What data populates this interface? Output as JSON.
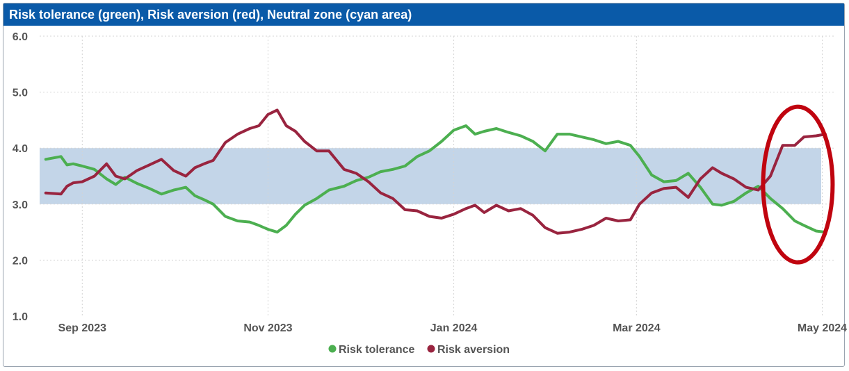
{
  "chart_data": {
    "type": "line",
    "title": "Risk tolerance (green), Risk aversion (red), Neutral zone (cyan area)",
    "ylim": [
      1.0,
      6.0
    ],
    "yticks": [
      "1.0",
      "2.0",
      "3.0",
      "4.0",
      "5.0",
      "6.0"
    ],
    "x_range": [
      "2023-08-18",
      "2024-05-05"
    ],
    "xticks": [
      {
        "label": "Sep 2023",
        "date": "2023-09-01"
      },
      {
        "label": "Nov 2023",
        "date": "2023-11-01"
      },
      {
        "label": "Jan 2024",
        "date": "2024-01-01"
      },
      {
        "label": "Mar 2024",
        "date": "2024-03-01"
      },
      {
        "label": "May 2024",
        "date": "2024-05-01"
      }
    ],
    "grid": true,
    "legend_position": "bottom-center",
    "neutral_zone": {
      "y_low": 3.0,
      "y_high": 4.0,
      "color": "#c3d5e8"
    },
    "highlight_ellipse": {
      "x_center": "2024-04-23",
      "y_center": 3.35,
      "color": "#c0040f"
    },
    "series": [
      {
        "name": "Risk tolerance",
        "color": "#4caf50",
        "x": [
          "2023-08-20",
          "2023-08-25",
          "2023-08-27",
          "2023-08-29",
          "2023-09-01",
          "2023-09-05",
          "2023-09-09",
          "2023-09-12",
          "2023-09-15",
          "2023-09-19",
          "2023-09-23",
          "2023-09-27",
          "2023-10-01",
          "2023-10-05",
          "2023-10-08",
          "2023-10-11",
          "2023-10-14",
          "2023-10-18",
          "2023-10-22",
          "2023-10-26",
          "2023-10-29",
          "2023-11-01",
          "2023-11-04",
          "2023-11-07",
          "2023-11-10",
          "2023-11-13",
          "2023-11-17",
          "2023-11-21",
          "2023-11-26",
          "2023-11-30",
          "2023-12-04",
          "2023-12-08",
          "2023-12-12",
          "2023-12-16",
          "2023-12-20",
          "2023-12-24",
          "2023-12-28",
          "2024-01-01",
          "2024-01-05",
          "2024-01-08",
          "2024-01-11",
          "2024-01-15",
          "2024-01-19",
          "2024-01-23",
          "2024-01-27",
          "2024-01-31",
          "2024-02-04",
          "2024-02-08",
          "2024-02-12",
          "2024-02-16",
          "2024-02-20",
          "2024-02-24",
          "2024-02-28",
          "2024-03-02",
          "2024-03-06",
          "2024-03-10",
          "2024-03-14",
          "2024-03-18",
          "2024-03-22",
          "2024-03-26",
          "2024-03-29",
          "2024-04-02",
          "2024-04-06",
          "2024-04-10",
          "2024-04-14",
          "2024-04-18",
          "2024-04-22",
          "2024-04-25",
          "2024-04-29",
          "2024-05-02"
        ],
        "values": [
          3.8,
          3.85,
          3.7,
          3.72,
          3.68,
          3.62,
          3.45,
          3.35,
          3.48,
          3.37,
          3.28,
          3.18,
          3.25,
          3.3,
          3.15,
          3.08,
          3.0,
          2.78,
          2.7,
          2.68,
          2.62,
          2.55,
          2.5,
          2.62,
          2.82,
          2.98,
          3.1,
          3.25,
          3.32,
          3.42,
          3.48,
          3.58,
          3.62,
          3.68,
          3.85,
          3.95,
          4.12,
          4.32,
          4.4,
          4.25,
          4.3,
          4.35,
          4.28,
          4.22,
          4.12,
          3.95,
          4.25,
          4.25,
          4.2,
          4.15,
          4.08,
          4.12,
          4.05,
          3.85,
          3.52,
          3.4,
          3.42,
          3.55,
          3.3,
          3.0,
          2.98,
          3.05,
          3.2,
          3.32,
          3.1,
          2.92,
          2.7,
          2.62,
          2.52,
          2.5
        ]
      },
      {
        "name": "Risk aversion",
        "color": "#99243f",
        "x": [
          "2023-08-20",
          "2023-08-25",
          "2023-08-27",
          "2023-08-29",
          "2023-09-01",
          "2023-09-05",
          "2023-09-09",
          "2023-09-12",
          "2023-09-15",
          "2023-09-19",
          "2023-09-23",
          "2023-09-27",
          "2023-10-01",
          "2023-10-05",
          "2023-10-08",
          "2023-10-11",
          "2023-10-14",
          "2023-10-18",
          "2023-10-22",
          "2023-10-26",
          "2023-10-29",
          "2023-11-01",
          "2023-11-04",
          "2023-11-07",
          "2023-11-10",
          "2023-11-13",
          "2023-11-17",
          "2023-11-21",
          "2023-11-26",
          "2023-11-30",
          "2023-12-04",
          "2023-12-08",
          "2023-12-12",
          "2023-12-16",
          "2023-12-20",
          "2023-12-24",
          "2023-12-28",
          "2024-01-01",
          "2024-01-05",
          "2024-01-08",
          "2024-01-11",
          "2024-01-15",
          "2024-01-19",
          "2024-01-23",
          "2024-01-27",
          "2024-01-31",
          "2024-02-04",
          "2024-02-08",
          "2024-02-12",
          "2024-02-16",
          "2024-02-20",
          "2024-02-24",
          "2024-02-28",
          "2024-03-02",
          "2024-03-06",
          "2024-03-10",
          "2024-03-14",
          "2024-03-18",
          "2024-03-22",
          "2024-03-26",
          "2024-03-29",
          "2024-04-02",
          "2024-04-06",
          "2024-04-10",
          "2024-04-14",
          "2024-04-18",
          "2024-04-22",
          "2024-04-25",
          "2024-04-29",
          "2024-05-02"
        ],
        "values": [
          3.2,
          3.18,
          3.32,
          3.38,
          3.4,
          3.5,
          3.72,
          3.5,
          3.45,
          3.6,
          3.7,
          3.8,
          3.6,
          3.5,
          3.65,
          3.72,
          3.78,
          4.1,
          4.25,
          4.35,
          4.4,
          4.6,
          4.68,
          4.4,
          4.3,
          4.12,
          3.95,
          3.95,
          3.62,
          3.55,
          3.4,
          3.2,
          3.1,
          2.9,
          2.88,
          2.78,
          2.75,
          2.82,
          2.92,
          2.98,
          2.85,
          2.98,
          2.88,
          2.92,
          2.8,
          2.58,
          2.48,
          2.5,
          2.55,
          2.62,
          2.75,
          2.7,
          2.72,
          3.0,
          3.2,
          3.28,
          3.3,
          3.12,
          3.45,
          3.65,
          3.55,
          3.45,
          3.3,
          3.25,
          3.5,
          4.05,
          4.05,
          4.2,
          4.22,
          4.25
        ]
      }
    ]
  }
}
